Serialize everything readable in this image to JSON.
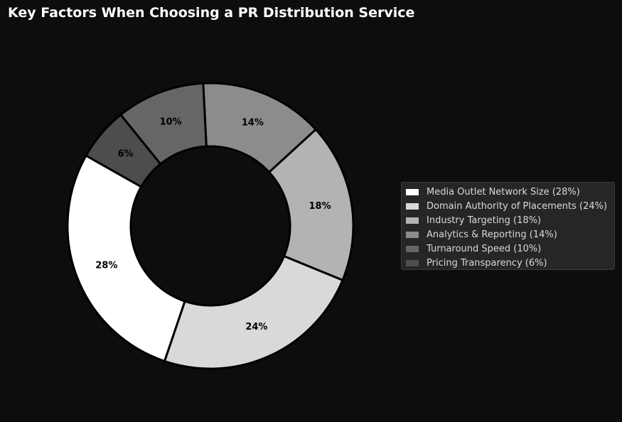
{
  "chart_data": {
    "type": "pie",
    "title": "Key Factors When Choosing a PR Distribution Service",
    "donut": true,
    "legend_position": "right",
    "slices": [
      {
        "name": "Media Outlet Network Size",
        "value": 28,
        "label": "28%",
        "legend": "Media Outlet Network Size  (28%)",
        "color": "#ffffff"
      },
      {
        "name": "Domain Authority of Placements",
        "value": 24,
        "label": "24%",
        "legend": "Domain Authority of Placements  (24%)",
        "color": "#d9d9d9"
      },
      {
        "name": "Industry Targeting",
        "value": 18,
        "label": "18%",
        "legend": "Industry Targeting  (18%)",
        "color": "#b3b3b3"
      },
      {
        "name": "Analytics & Reporting",
        "value": 14,
        "label": "14%",
        "legend": "Analytics & Reporting  (14%)",
        "color": "#8c8c8c"
      },
      {
        "name": "Turnaround Speed",
        "value": 10,
        "label": "10%",
        "legend": "Turnaround Speed  (10%)",
        "color": "#666666"
      },
      {
        "name": "Pricing Transparency",
        "value": 6,
        "label": "6%",
        "legend": "Pricing Transparency  (6%)",
        "color": "#4d4d4d"
      }
    ]
  }
}
